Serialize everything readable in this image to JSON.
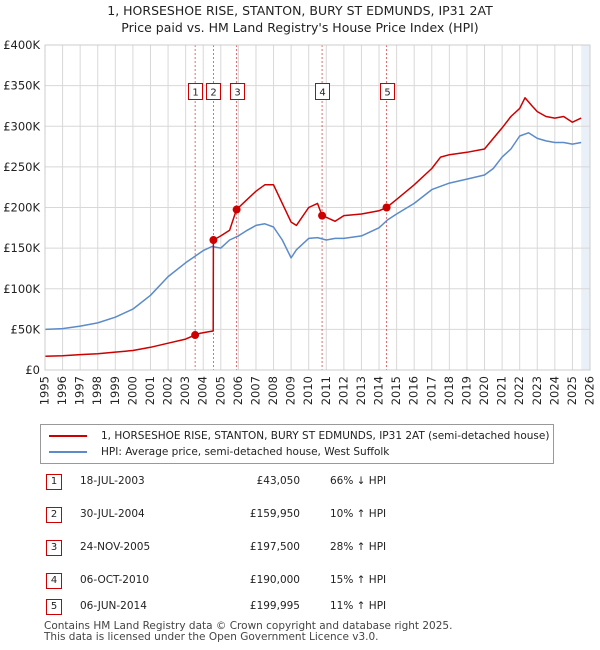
{
  "title_line1": "1, HORSESHOE RISE, STANTON, BURY ST EDMUNDS, IP31 2AT",
  "title_line2": "Price paid vs. HM Land Registry's House Price Index (HPI)",
  "colors": {
    "price": "#cc0000",
    "hpi": "#5b8bc9",
    "shade": "#eaf0f8",
    "grid": "#d8d8d8",
    "marker_border": "#cc0000"
  },
  "chart_data": {
    "type": "line",
    "xlabel": "",
    "ylabel": "",
    "xlim": [
      1995,
      2026
    ],
    "ylim": [
      0,
      400000
    ],
    "y_ticks": [
      {
        "value": 0,
        "label": "£0"
      },
      {
        "value": 50000,
        "label": "£50K"
      },
      {
        "value": 100000,
        "label": "£100K"
      },
      {
        "value": 150000,
        "label": "£150K"
      },
      {
        "value": 200000,
        "label": "£200K"
      },
      {
        "value": 250000,
        "label": "£250K"
      },
      {
        "value": 300000,
        "label": "£300K"
      },
      {
        "value": 350000,
        "label": "£350K"
      },
      {
        "value": 400000,
        "label": "£400K"
      }
    ],
    "x_ticks": [
      "1995",
      "1996",
      "1997",
      "1998",
      "1999",
      "2000",
      "2001",
      "2002",
      "2003",
      "2004",
      "2005",
      "2006",
      "2007",
      "2008",
      "2009",
      "2010",
      "2011",
      "2012",
      "2013",
      "2014",
      "2015",
      "2016",
      "2017",
      "2018",
      "2019",
      "2020",
      "2021",
      "2022",
      "2023",
      "2024",
      "2025",
      "2026"
    ],
    "series": [
      {
        "name": "1, HORSESHOE RISE, STANTON, BURY ST EDMUNDS, IP31 2AT (semi-detached house)",
        "color": "#cc0000",
        "x": [
          1995.0,
          1996.0,
          1997.0,
          1998.0,
          1999.0,
          2000.0,
          2001.0,
          2002.0,
          2003.0,
          2003.54,
          2003.8,
          2004.3,
          2004.57,
          2004.58,
          2005.0,
          2005.5,
          2005.89,
          2006.5,
          2007.0,
          2007.5,
          2008.0,
          2008.5,
          2009.0,
          2009.3,
          2010.0,
          2010.5,
          2010.76,
          2011.0,
          2011.5,
          2012.0,
          2013.0,
          2014.0,
          2014.43,
          2015.0,
          2016.0,
          2017.0,
          2017.5,
          2018.0,
          2019.0,
          2020.0,
          2020.5,
          2021.0,
          2021.5,
          2022.0,
          2022.3,
          2022.7,
          2023.0,
          2023.5,
          2024.0,
          2024.5,
          2025.0,
          2025.5
        ],
        "y": [
          17000,
          17500,
          19000,
          20000,
          22000,
          24000,
          28000,
          33000,
          38000,
          43050,
          45000,
          47000,
          48000,
          159950,
          165000,
          172000,
          197500,
          210000,
          220000,
          228000,
          228000,
          205000,
          182000,
          178000,
          200000,
          205000,
          190000,
          188000,
          183000,
          190000,
          192000,
          196000,
          199995,
          210000,
          228000,
          248000,
          262000,
          265000,
          268000,
          272000,
          285000,
          298000,
          312000,
          322000,
          335000,
          325000,
          318000,
          312000,
          310000,
          312000,
          305000,
          310000
        ]
      },
      {
        "name": "HPI: Average price, semi-detached house, West Suffolk",
        "color": "#5b8bc9",
        "x": [
          1995.0,
          1996.0,
          1997.0,
          1998.0,
          1999.0,
          2000.0,
          2001.0,
          2002.0,
          2003.0,
          2004.0,
          2004.5,
          2005.0,
          2005.5,
          2006.0,
          2006.5,
          2007.0,
          2007.5,
          2008.0,
          2008.5,
          2009.0,
          2009.3,
          2010.0,
          2010.5,
          2011.0,
          2011.5,
          2012.0,
          2013.0,
          2014.0,
          2014.5,
          2015.0,
          2016.0,
          2017.0,
          2018.0,
          2019.0,
          2020.0,
          2020.5,
          2021.0,
          2021.5,
          2022.0,
          2022.5,
          2023.0,
          2023.5,
          2024.0,
          2024.5,
          2025.0,
          2025.5
        ],
        "y": [
          50000,
          51000,
          54000,
          58000,
          65000,
          75000,
          92000,
          115000,
          132000,
          147000,
          152000,
          150000,
          160000,
          165000,
          172000,
          178000,
          180000,
          176000,
          160000,
          138000,
          148000,
          162000,
          163000,
          160000,
          162000,
          162000,
          165000,
          175000,
          185000,
          192000,
          205000,
          222000,
          230000,
          235000,
          240000,
          248000,
          262000,
          272000,
          288000,
          292000,
          285000,
          282000,
          280000,
          280000,
          278000,
          280000
        ]
      }
    ],
    "sales": [
      {
        "label": "1",
        "x": 2003.54,
        "y": 43050
      },
      {
        "label": "2",
        "x": 2004.58,
        "y": 159950
      },
      {
        "label": "3",
        "x": 2005.9,
        "y": 197500
      },
      {
        "label": "4",
        "x": 2010.76,
        "y": 190000
      },
      {
        "label": "5",
        "x": 2014.43,
        "y": 199995
      }
    ],
    "shaded_from": 2025.5
  },
  "legend": {
    "price_label": "1, HORSESHOE RISE, STANTON, BURY ST EDMUNDS, IP31 2AT (semi-detached house)",
    "hpi_label": "HPI: Average price, semi-detached house, West Suffolk"
  },
  "sales_table": [
    {
      "num": "1",
      "date": "18-JUL-2003",
      "price": "£43,050",
      "hpi": "66% ↓ HPI"
    },
    {
      "num": "2",
      "date": "30-JUL-2004",
      "price": "£159,950",
      "hpi": "10% ↑ HPI"
    },
    {
      "num": "3",
      "date": "24-NOV-2005",
      "price": "£197,500",
      "hpi": "28% ↑ HPI"
    },
    {
      "num": "4",
      "date": "06-OCT-2010",
      "price": "£190,000",
      "hpi": "15% ↑ HPI"
    },
    {
      "num": "5",
      "date": "06-JUN-2014",
      "price": "£199,995",
      "hpi": "11% ↑ HPI"
    }
  ],
  "footer_line1": "Contains HM Land Registry data © Crown copyright and database right 2025.",
  "footer_line2": "This data is licensed under the Open Government Licence v3.0."
}
